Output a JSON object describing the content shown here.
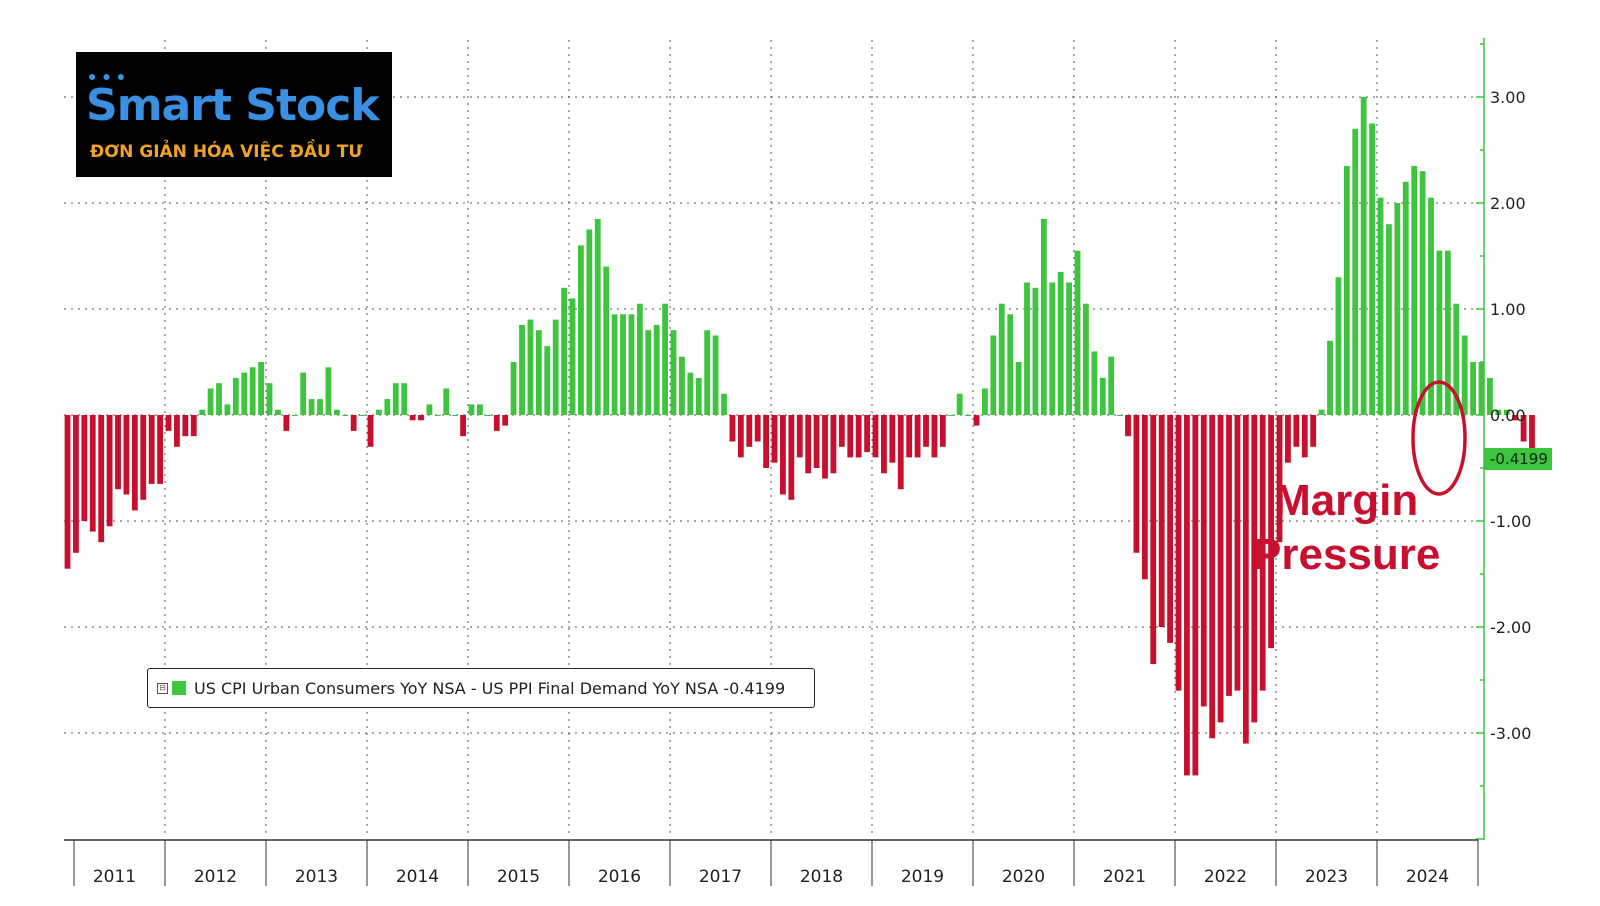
{
  "logo": {
    "title": "Smart Stock",
    "subtitle": "ĐƠN GIẢN HÓA VIỆC ĐẦU TƯ"
  },
  "legend": {
    "label": "US CPI Urban Consumers YoY NSA - US PPI Final Demand YoY NSA -0.4199"
  },
  "annotation": {
    "line1": "Margin",
    "line2": "Pressure"
  },
  "last_value_tag": "-0.4199",
  "colors": {
    "positive": "#3ec43e",
    "negative": "#c8102e",
    "axis": "#3ec43e",
    "grid": "#555555"
  },
  "chart_data": {
    "type": "bar",
    "x_start": "2011-01",
    "x_end": "2024-12",
    "x_ticks": [
      "2011",
      "2012",
      "2013",
      "2014",
      "2015",
      "2016",
      "2017",
      "2018",
      "2019",
      "2020",
      "2021",
      "2022",
      "2023",
      "2024"
    ],
    "y_ticks": [
      "3.00",
      "2.00",
      "1.00",
      "0.00",
      "-1.00",
      "-2.00",
      "-3.00"
    ],
    "ylim": [
      -4.0,
      3.6
    ],
    "grid": true,
    "axis_position": "right",
    "legend_position": "bottom-left",
    "values": [
      -1.45,
      -1.3,
      -1.0,
      -1.1,
      -1.2,
      -1.05,
      -0.7,
      -0.75,
      -0.9,
      -0.8,
      -0.65,
      -0.65,
      -0.15,
      -0.3,
      -0.2,
      -0.2,
      0.05,
      0.25,
      0.3,
      0.1,
      0.35,
      0.4,
      0.45,
      0.5,
      0.3,
      0.05,
      -0.15,
      0.0,
      0.4,
      0.15,
      0.15,
      0.45,
      0.05,
      0.0,
      -0.15,
      0.0,
      -0.3,
      0.05,
      0.15,
      0.3,
      0.3,
      -0.05,
      -0.05,
      0.1,
      0.0,
      0.25,
      0.0,
      -0.2,
      0.1,
      0.1,
      0.0,
      -0.15,
      -0.1,
      0.5,
      0.85,
      0.9,
      0.8,
      0.65,
      0.9,
      1.2,
      1.1,
      1.6,
      1.75,
      1.85,
      1.4,
      0.95,
      0.95,
      0.95,
      1.05,
      0.8,
      0.85,
      1.05,
      0.8,
      0.55,
      0.4,
      0.35,
      0.8,
      0.75,
      0.2,
      -0.25,
      -0.4,
      -0.3,
      -0.25,
      -0.5,
      -0.45,
      -0.75,
      -0.8,
      -0.4,
      -0.55,
      -0.5,
      -0.6,
      -0.55,
      -0.3,
      -0.4,
      -0.4,
      -0.35,
      -0.4,
      -0.55,
      -0.45,
      -0.7,
      -0.4,
      -0.4,
      -0.3,
      -0.4,
      -0.3,
      0.0,
      0.2,
      0.0,
      -0.1,
      0.25,
      0.75,
      1.05,
      0.95,
      0.5,
      1.25,
      1.2,
      1.85,
      1.25,
      1.35,
      1.25,
      1.55,
      1.05,
      0.6,
      0.35,
      0.55,
      0.0,
      -0.2,
      -1.3,
      -1.55,
      -2.35,
      -2.0,
      -2.15,
      -2.6,
      -3.4,
      -3.4,
      -2.75,
      -3.05,
      -2.9,
      -2.65,
      -2.6,
      -3.1,
      -2.9,
      -2.6,
      -2.2,
      -1.2,
      -0.45,
      -0.3,
      -0.4,
      -0.3,
      0.05,
      0.7,
      1.3,
      2.35,
      2.7,
      3.0,
      2.75,
      2.05,
      1.8,
      2.0,
      2.2,
      2.35,
      2.3,
      2.05,
      1.55,
      1.55,
      1.05,
      0.75,
      0.5,
      0.5,
      0.35,
      0.05,
      0.05,
      -0.05,
      -0.25,
      -0.42
    ]
  }
}
